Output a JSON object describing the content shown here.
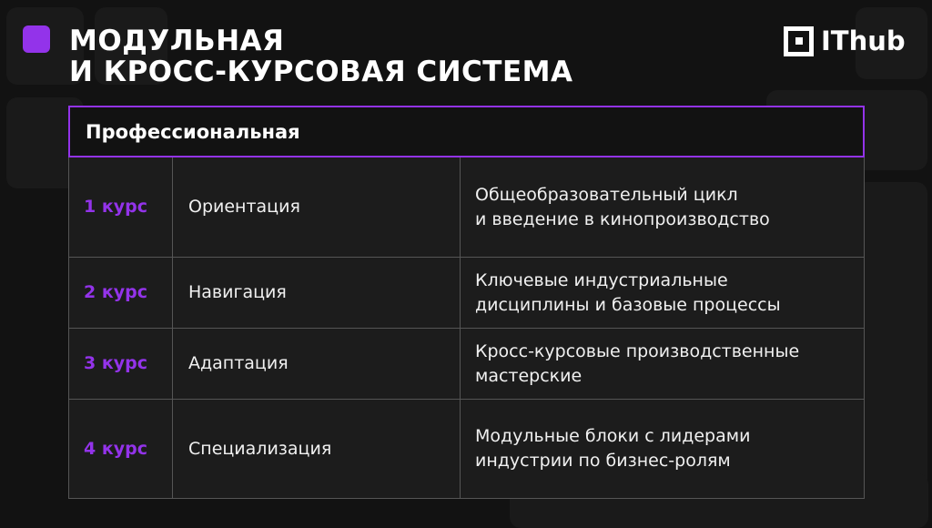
{
  "title": {
    "line1": "МОДУЛЬНАЯ",
    "line2": "И КРОСС-КУРСОВАЯ СИСТЕМА"
  },
  "logo": {
    "text": "IThub"
  },
  "colors": {
    "accent": "#9333ea",
    "background": "#121212"
  },
  "table": {
    "header": "Профессиональная",
    "rows": [
      {
        "course": "1 курс",
        "stage": "Ориентация",
        "description": "Общеобразовательный цикл\nи введение в кинопроизводство"
      },
      {
        "course": "2 курс",
        "stage": "Навигация",
        "description": "Ключевые индустриальные\nдисциплины и базовые процессы"
      },
      {
        "course": "3 курс",
        "stage": "Адаптация",
        "description": "Кросс-курсовые производственные\nмастерские"
      },
      {
        "course": "4 курс",
        "stage": "Специализация",
        "description": "Модульные блоки с лидерами\nиндустрии по бизнес-ролям"
      }
    ]
  }
}
